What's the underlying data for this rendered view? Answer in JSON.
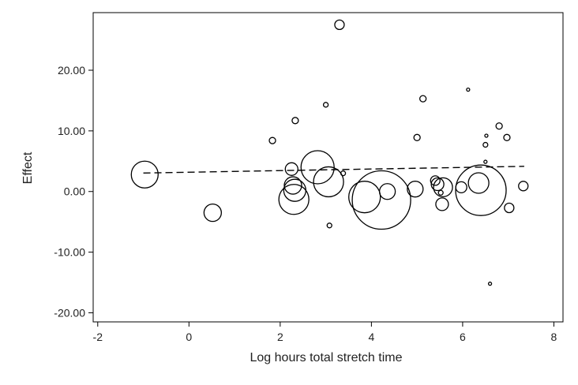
{
  "chart_data": {
    "type": "scatter",
    "title": "",
    "xlabel": "Log hours total stretch time",
    "ylabel": "Effect",
    "xlim": [
      -2.1,
      8.2
    ],
    "ylim": [
      -21.5,
      29.5
    ],
    "xticks": [
      -2,
      0,
      2,
      4,
      6,
      8
    ],
    "yticks": [
      -20,
      -10,
      0,
      10,
      20
    ],
    "xtick_labels": [
      "-2",
      "0",
      "2",
      "4",
      "6",
      "8"
    ],
    "ytick_labels": [
      "-20.00",
      "-10.00",
      "0.00",
      "10.00",
      "20.00"
    ],
    "grid": false,
    "legend": "none",
    "series": [
      {
        "marker": "open-circle",
        "note_size": "bubble size proportional to study weight",
        "points": [
          {
            "x": -0.97,
            "y": 2.8,
            "size": 17
          },
          {
            "x": 0.52,
            "y": -3.5,
            "size": 11
          },
          {
            "x": 1.83,
            "y": 8.4,
            "size": 4
          },
          {
            "x": 2.25,
            "y": 3.7,
            "size": 8
          },
          {
            "x": 2.28,
            "y": 1.0,
            "size": 11
          },
          {
            "x": 2.33,
            "y": 11.7,
            "size": 4
          },
          {
            "x": 2.32,
            "y": 0.2,
            "size": 14
          },
          {
            "x": 2.3,
            "y": -1.3,
            "size": 19
          },
          {
            "x": 2.82,
            "y": 4.0,
            "size": 21
          },
          {
            "x": 3.0,
            "y": 14.3,
            "size": 3
          },
          {
            "x": 3.06,
            "y": 1.6,
            "size": 19
          },
          {
            "x": 3.08,
            "y": -5.6,
            "size": 3
          },
          {
            "x": 3.3,
            "y": 27.5,
            "size": 6
          },
          {
            "x": 3.38,
            "y": 3.0,
            "size": 3
          },
          {
            "x": 3.85,
            "y": -0.9,
            "size": 20
          },
          {
            "x": 4.22,
            "y": -1.4,
            "size": 37
          },
          {
            "x": 4.35,
            "y": 0.0,
            "size": 10
          },
          {
            "x": 4.96,
            "y": 0.4,
            "size": 10
          },
          {
            "x": 5.0,
            "y": 8.9,
            "size": 4
          },
          {
            "x": 5.13,
            "y": 15.3,
            "size": 4
          },
          {
            "x": 5.4,
            "y": 1.8,
            "size": 6
          },
          {
            "x": 5.45,
            "y": 1.2,
            "size": 8
          },
          {
            "x": 5.52,
            "y": -0.2,
            "size": 3
          },
          {
            "x": 5.57,
            "y": 0.7,
            "size": 12
          },
          {
            "x": 5.55,
            "y": -2.1,
            "size": 8
          },
          {
            "x": 5.97,
            "y": 0.7,
            "size": 7
          },
          {
            "x": 6.12,
            "y": 16.8,
            "size": 2
          },
          {
            "x": 6.35,
            "y": 1.4,
            "size": 13
          },
          {
            "x": 6.4,
            "y": 0.2,
            "size": 32
          },
          {
            "x": 6.5,
            "y": 7.7,
            "size": 3
          },
          {
            "x": 6.52,
            "y": 9.2,
            "size": 2
          },
          {
            "x": 6.5,
            "y": 4.9,
            "size": 2
          },
          {
            "x": 6.6,
            "y": -15.2,
            "size": 2
          },
          {
            "x": 6.8,
            "y": 10.8,
            "size": 4
          },
          {
            "x": 6.97,
            "y": 8.9,
            "size": 4
          },
          {
            "x": 7.02,
            "y": -2.7,
            "size": 6
          },
          {
            "x": 7.33,
            "y": 0.9,
            "size": 6
          }
        ]
      }
    ],
    "fit_line": {
      "style": "dashed",
      "x": [
        -1.0,
        7.35
      ],
      "y": [
        3.05,
        4.15
      ]
    }
  }
}
